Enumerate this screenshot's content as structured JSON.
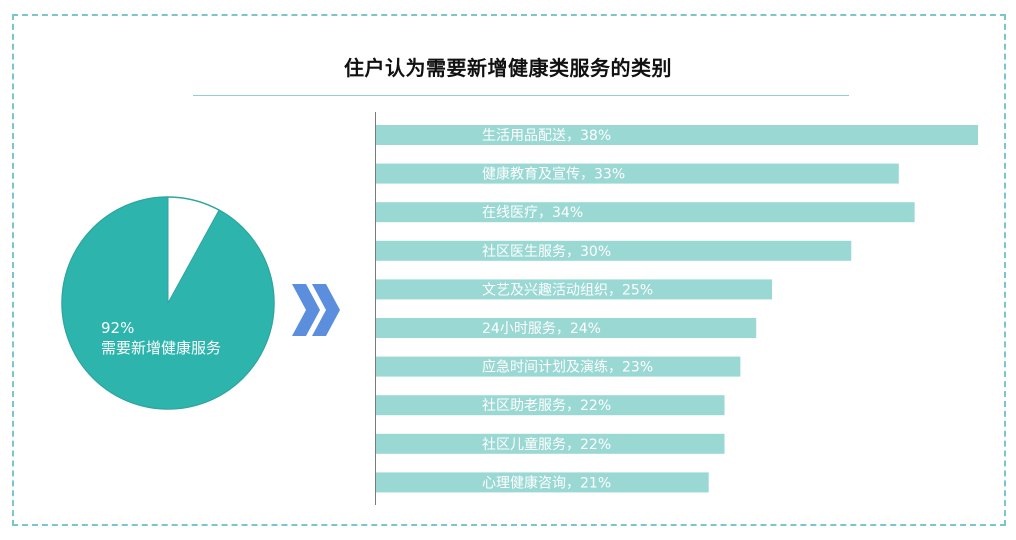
{
  "title": "住户认为需要新增健康类服务的类别",
  "pie": {
    "percent_label": "92%",
    "caption": "需要新增健康服务",
    "share": 0.92,
    "color": "#2db5ad",
    "remainder_color": "#ffffff",
    "border_color": "#2fa59f"
  },
  "arrow_icon": "double-chevron-right-icon",
  "chart_data": {
    "type": "bar",
    "orientation": "horizontal",
    "bar_color": "#9ad8d3",
    "label_color": "#ffffff",
    "categories": [
      "生活用品配送",
      "健康教育及宣传",
      "在线医疗",
      "社区医生服务",
      "文艺及兴趣活动组织",
      "24小时服务",
      "应急时间计划及演练",
      "社区助老服务",
      "社区儿童服务",
      "心理健康咨询"
    ],
    "values": [
      38,
      33,
      34,
      30,
      25,
      24,
      23,
      22,
      22,
      21
    ],
    "labels": [
      "生活用品配送，38%",
      "健康教育及宣传，33%",
      "在线医疗，34%",
      "社区医生服务，30%",
      "文艺及兴趣活动组织，25%",
      "24小时服务，24%",
      "应急时间计划及演练，23%",
      "社区助老服务，22%",
      "社区儿童服务，22%",
      "心理健康咨询，21%"
    ]
  }
}
